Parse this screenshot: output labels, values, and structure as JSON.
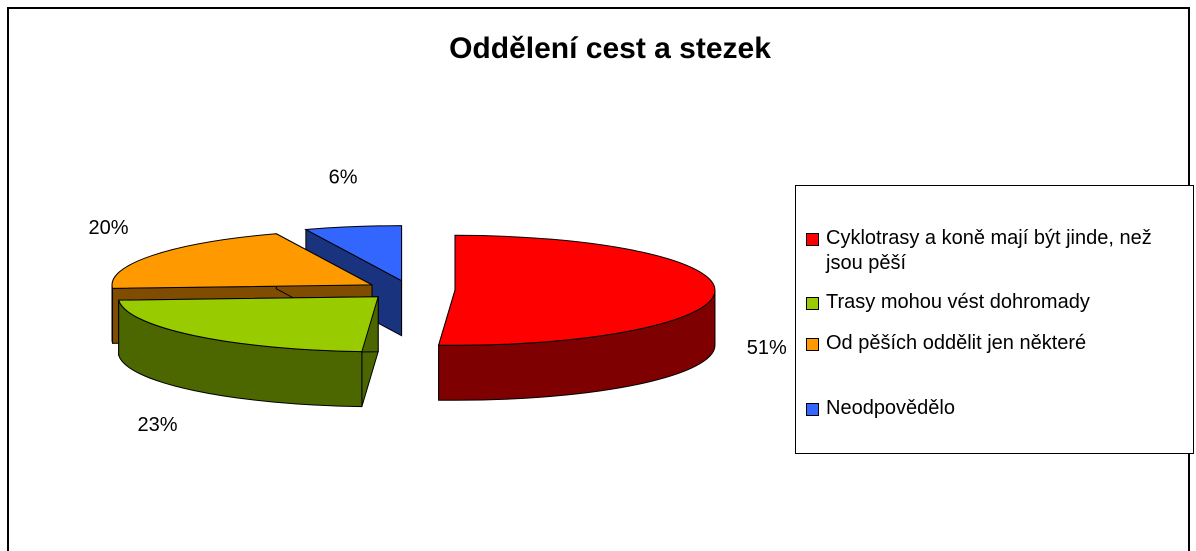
{
  "chart_data": {
    "type": "pie3d",
    "title": "Oddělení cest a stezek",
    "categories": [
      "Cyklotrasy a koně mají být jinde, než jsou pěší",
      "Trasy mohou vést dohromady",
      "Od pěších oddělit jen některé",
      "Neodpovědělo"
    ],
    "values": [
      51,
      23,
      20,
      6
    ],
    "value_labels": [
      "51%",
      "23%",
      "20%",
      "6%"
    ],
    "colors": [
      "#ff0000",
      "#99cc00",
      "#ff9900",
      "#3366ff"
    ],
    "legend": "right"
  }
}
